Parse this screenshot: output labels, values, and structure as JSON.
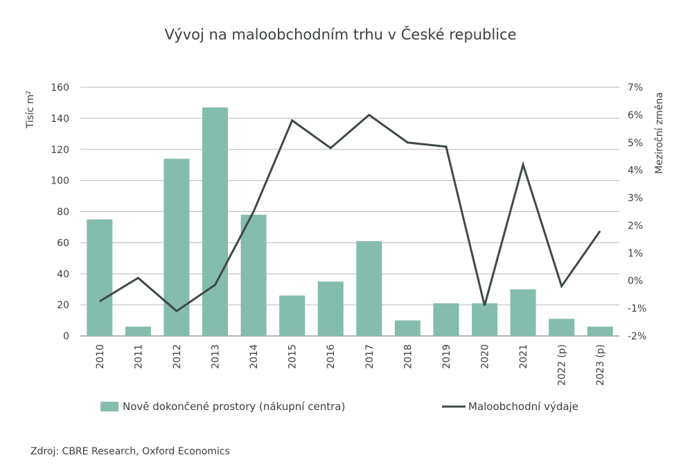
{
  "chart_data": {
    "type": "bar",
    "title": "Vývoj na maloobchodním trhu v České republice",
    "categories": [
      "2010",
      "2011",
      "2012",
      "2013",
      "2014",
      "2015",
      "2016",
      "2017",
      "2018",
      "2019",
      "2020",
      "2021",
      "2022 (p)",
      "2023 (p)"
    ],
    "series": [
      {
        "name": "Nově dokončené prostory (nákupní centra)",
        "type": "bar",
        "axis": "left",
        "color": "#84bcad",
        "values": [
          75,
          6,
          114,
          147,
          78,
          26,
          35,
          61,
          10,
          21,
          21,
          30,
          11,
          6
        ]
      },
      {
        "name": "Maloobchodní výdaje",
        "type": "line",
        "axis": "right",
        "color": "#3f4a48",
        "values": [
          -0.75,
          0.1,
          -1.1,
          -0.15,
          2.5,
          5.8,
          4.8,
          6.0,
          5.0,
          4.85,
          -0.9,
          4.2,
          -0.2,
          1.8
        ]
      }
    ],
    "ylabel_left": "Tisíc m²",
    "ylabel_right": "Meziroční změna",
    "ylim_left": [
      0,
      160
    ],
    "ylim_right": [
      -2,
      7
    ],
    "yticks_left": [
      "0",
      "20",
      "40",
      "60",
      "80",
      "100",
      "120",
      "140",
      "160"
    ],
    "yticks_right": [
      "-2%",
      "-1%",
      "0%",
      "1%",
      "2%",
      "3%",
      "4%",
      "5%",
      "6%",
      "7%"
    ],
    "grid": true,
    "legend_position": "bottom"
  },
  "source": "Zdroj: CBRE Research, Oxford Economics"
}
